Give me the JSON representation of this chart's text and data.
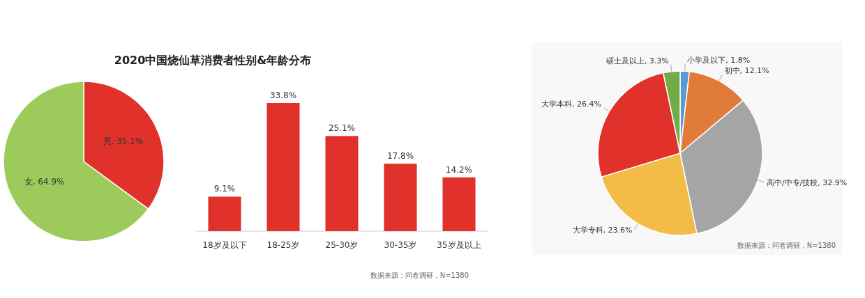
{
  "chart_data": [
    {
      "type": "pie",
      "title": "2020中国烧仙草消费者性别&年龄分布",
      "categories": [
        "男",
        "女"
      ],
      "values": [
        35.1,
        64.9
      ],
      "value_labels": [
        "35.1%",
        "64.9%"
      ],
      "colors": [
        "#e0312b",
        "#9ccb5c"
      ]
    },
    {
      "type": "bar",
      "categories": [
        "18岁及以下",
        "18-25岁",
        "25-30岁",
        "30-35岁",
        "35岁及以上"
      ],
      "values": [
        9.1,
        33.8,
        25.1,
        17.8,
        14.2
      ],
      "value_labels": [
        "9.1%",
        "33.8%",
        "25.1%",
        "17.8%",
        "14.2%"
      ],
      "color": "#e0312b",
      "annotations": [
        "数据来源：问卷调研，N=1380"
      ]
    },
    {
      "type": "pie",
      "categories": [
        "小学及以下",
        "初中",
        "高中/中专/技校",
        "大学专科",
        "大学本科",
        "硕士及以上"
      ],
      "values": [
        1.8,
        12.1,
        32.9,
        23.6,
        26.4,
        3.3
      ],
      "value_labels": [
        "1.8%",
        "12.1%",
        "32.9%",
        "23.6%",
        "26.4%",
        "3.3%"
      ],
      "colors": [
        "#5b9bd5",
        "#e07b39",
        "#a5a5a5",
        "#f2bc46",
        "#e0312b",
        "#70ad47"
      ],
      "annotations": [
        "数据来源：问卷调研，N=1380"
      ]
    }
  ]
}
